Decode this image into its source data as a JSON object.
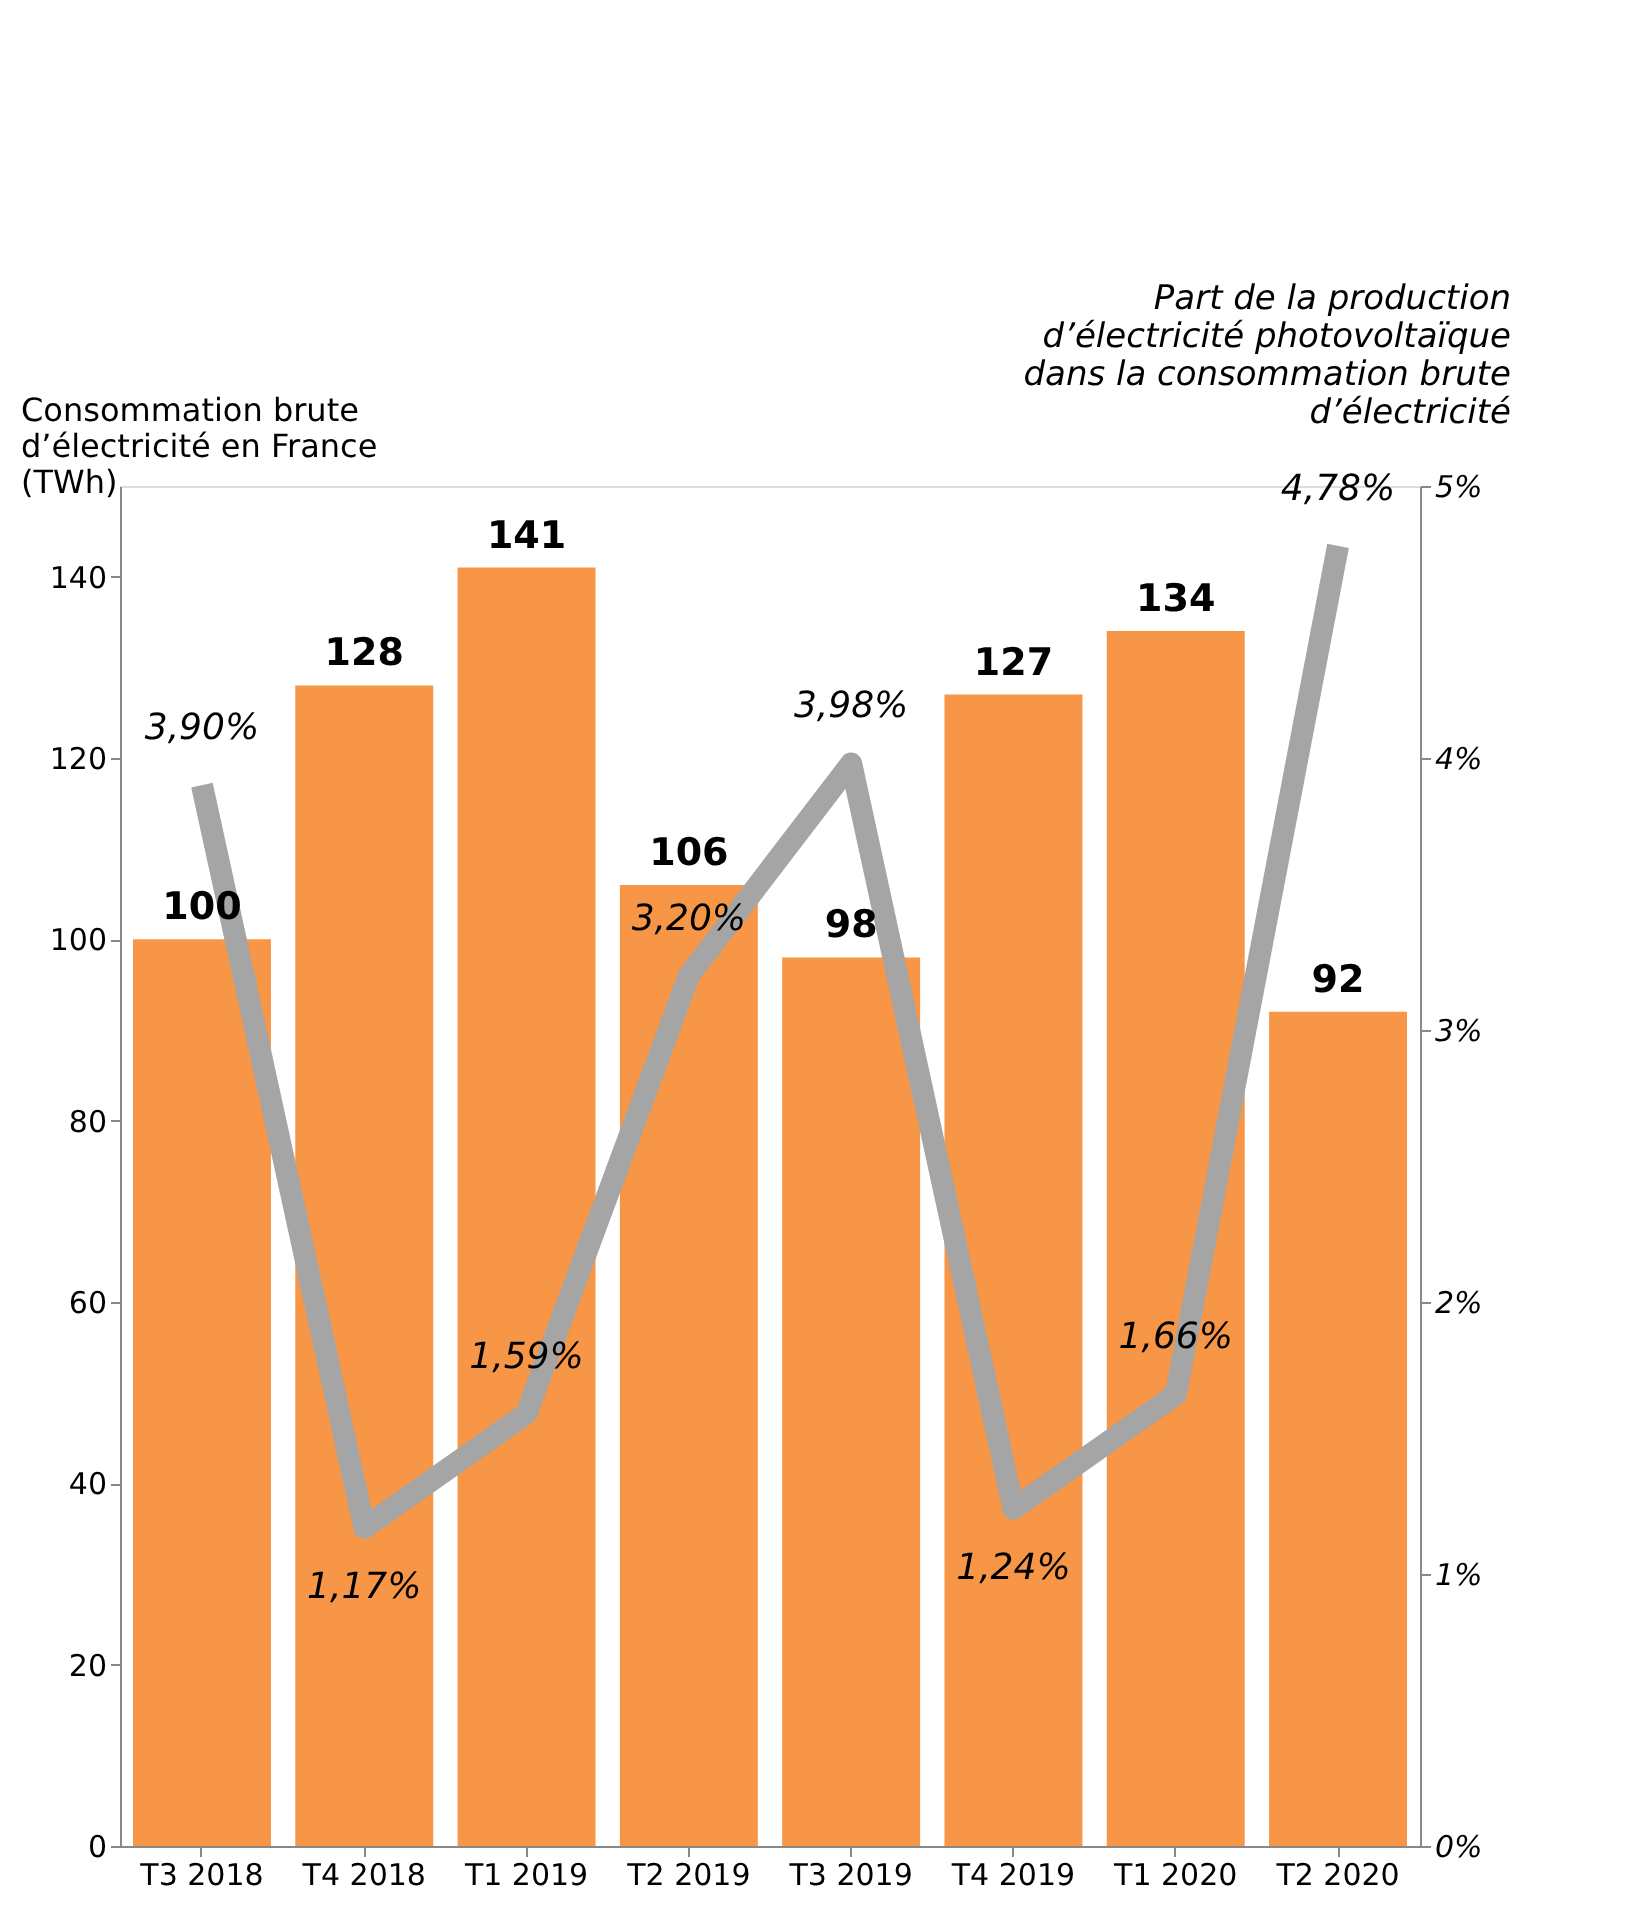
{
  "chart_data": {
    "type": "bar",
    "ylabel": "Consommation brute\nd’électricité en France\n(TWh)",
    "y2label": "Part de la production\nd’électricité photovoltaïque\ndans la consommation brute\nd’électricité",
    "categories": [
      "T3 2018",
      "T4 2018",
      "T1 2019",
      "T2 2019",
      "T3 2019",
      "T4 2019",
      "T1 2020",
      "T2 2020"
    ],
    "series": [
      {
        "color": "#f79646",
        "values": [
          100,
          128,
          141,
          106,
          98,
          127,
          134,
          92
        ]
      },
      {
        "type": "line",
        "axis": "y2",
        "color": "#a5a5a5",
        "values": [
          3.9,
          1.17,
          1.59,
          3.2,
          3.98,
          1.24,
          1.66,
          4.78
        ],
        "value_labels": [
          "3,90%",
          "1,17%",
          "1,59%",
          "3,20%",
          "3,98%",
          "1,24%",
          "1,66%",
          "4,78%"
        ]
      }
    ],
    "data_labels": true,
    "ylim": [
      0,
      150
    ],
    "yticks": [
      0,
      20,
      40,
      60,
      80,
      100,
      120,
      140
    ],
    "y2lim": [
      0,
      5
    ],
    "y2ticks": [
      {
        "value": 0,
        "label": "0%"
      },
      {
        "value": 1,
        "label": "1%"
      },
      {
        "value": 2,
        "label": "2%"
      },
      {
        "value": 3,
        "label": "3%"
      },
      {
        "value": 4,
        "label": "4%"
      },
      {
        "value": 5,
        "label": "5%"
      }
    ],
    "line_style": "solid"
  }
}
